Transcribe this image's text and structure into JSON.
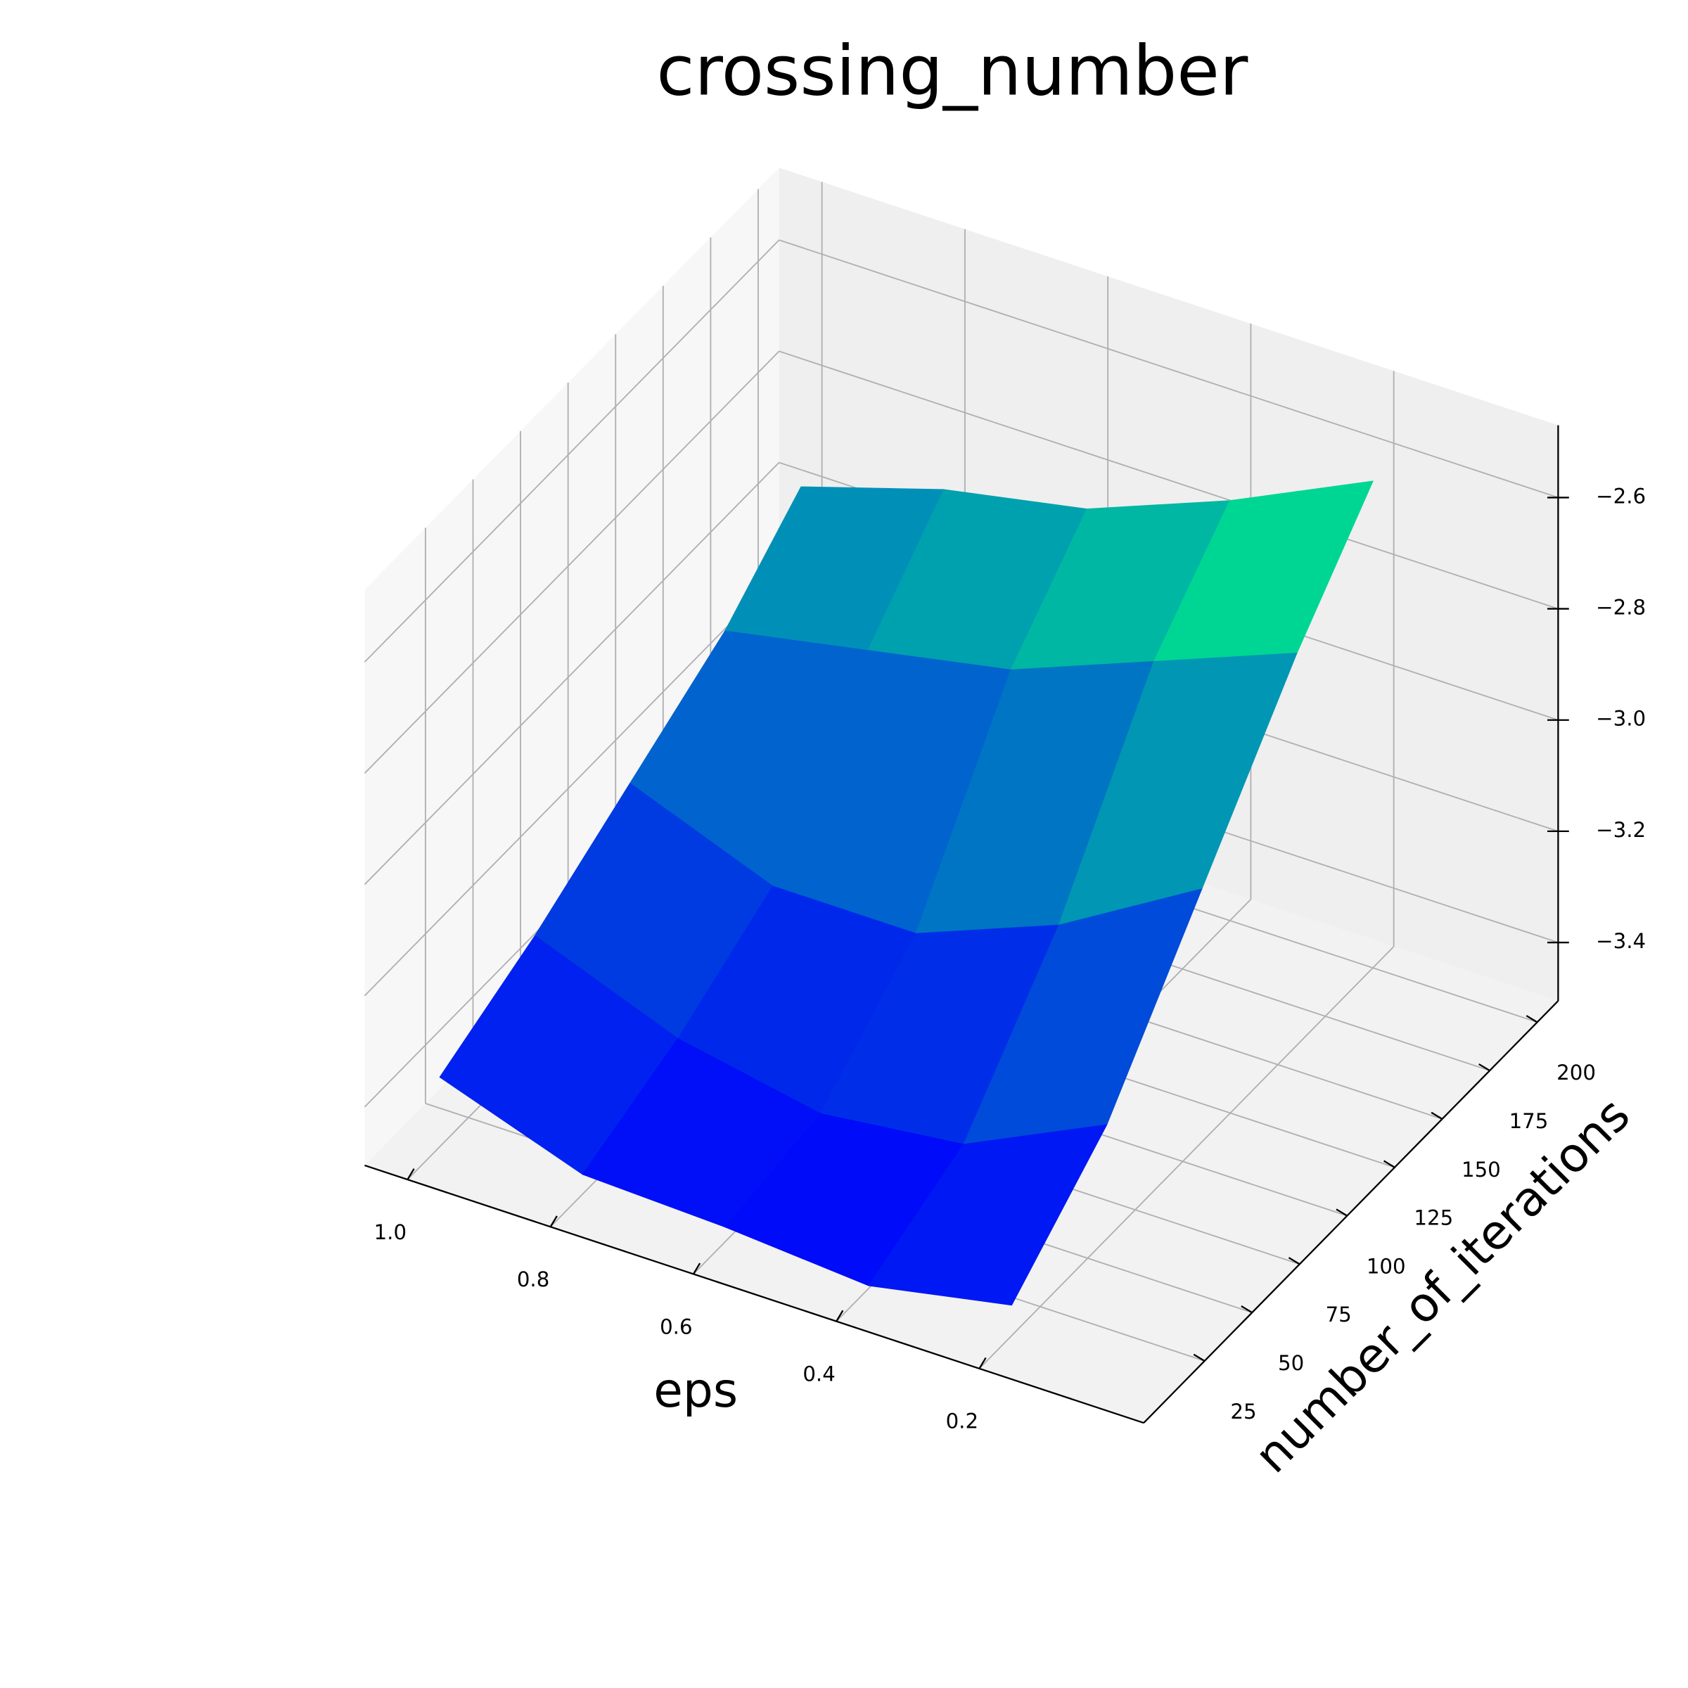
{
  "chart_data": {
    "type": "surface3d",
    "title": "crossing_number",
    "x_label": "eps",
    "y_label": "number_of_iterations",
    "x": [
      1.0,
      0.8,
      0.6,
      0.4,
      0.2
    ],
    "y": [
      10,
      60,
      110,
      160,
      200
    ],
    "z": [
      [
        -3.38,
        -3.47,
        -3.48,
        -3.5,
        -3.45
      ],
      [
        -3.3,
        -3.4,
        -3.45,
        -3.42,
        -3.3
      ],
      [
        -3.2,
        -3.3,
        -3.3,
        -3.2,
        -3.05
      ],
      [
        -3.1,
        -3.05,
        -3.0,
        -2.9,
        -2.8
      ],
      [
        -2.98,
        -2.9,
        -2.85,
        -2.75,
        -2.63
      ]
    ],
    "colormap": "winter",
    "xlim": [
      -0.03,
      1.06
    ],
    "ylim": [
      -7,
      211
    ],
    "zlim": [
      -3.505,
      -2.47
    ],
    "xticks": [
      0.2,
      0.4,
      0.6,
      0.8,
      {
        "value": 1.0,
        "label": "1.0"
      }
    ],
    "yticks": [
      25,
      50,
      75,
      100,
      125,
      150,
      175,
      200
    ],
    "zticks": [
      {
        "value": -3.4,
        "label": "−3.4"
      },
      {
        "value": -3.2,
        "label": "−3.2"
      },
      {
        "value": -3.0,
        "label": "−3.0"
      },
      {
        "value": -2.8,
        "label": "−2.8"
      },
      {
        "value": -2.6,
        "label": "−2.6"
      }
    ],
    "grid": true
  }
}
